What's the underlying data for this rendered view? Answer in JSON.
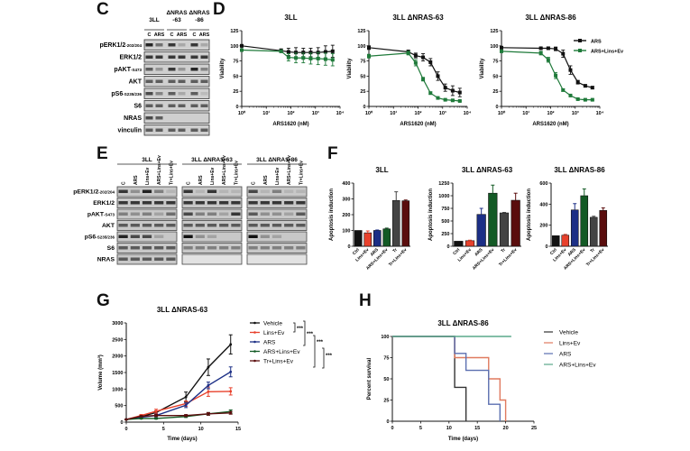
{
  "panels": {
    "C": {
      "letter": "C",
      "groups": [
        "3LL",
        "ΔNRAS\n-63",
        "ΔNRAS\n-86"
      ],
      "group_lines": [
        [
          "3LL"
        ],
        [
          "ΔNRAS",
          "-63"
        ],
        [
          "ΔNRAS",
          "-86"
        ]
      ],
      "lanes": [
        "C",
        "ARS",
        "C",
        "ARS",
        "C",
        "ARS"
      ],
      "rows": [
        "pERK1/2-T202/Y204",
        "ERK1/2",
        "pAKT-S473",
        "AKT",
        "pS6-S235/236",
        "S6",
        "NRAS",
        "vinculin"
      ],
      "row_labels": [
        {
          "main": "pERK1/2",
          "sub": "-202/204"
        },
        {
          "main": "ERK1/2",
          "sub": ""
        },
        {
          "main": "pAKT",
          "sub": "-S473"
        },
        {
          "main": "AKT",
          "sub": ""
        },
        {
          "main": "pS6",
          "sub": "-S235/236"
        },
        {
          "main": "S6",
          "sub": ""
        },
        {
          "main": "NRAS",
          "sub": ""
        },
        {
          "main": "vinculin",
          "sub": ""
        }
      ]
    },
    "D": {
      "letter": "D"
    },
    "E": {
      "letter": "E",
      "groups": [
        "3LL",
        "3LL ΔNRAS-63",
        "3LL ΔNRAS-86"
      ],
      "lanes": [
        "C",
        "ARS",
        "Lins+Ev",
        "ARS+Lins+Ev",
        "Tr+Lins+Ev"
      ],
      "row_labels": [
        {
          "main": "pERK1/2",
          "sub": "-202/204"
        },
        {
          "main": "ERK1/2",
          "sub": ""
        },
        {
          "main": "pAKT",
          "sub": "-S473"
        },
        {
          "main": "AKT",
          "sub": ""
        },
        {
          "main": "pS6",
          "sub": "-S235/236"
        },
        {
          "main": "S6",
          "sub": ""
        },
        {
          "main": "NRAS",
          "sub": ""
        }
      ]
    },
    "F": {
      "letter": "F"
    },
    "G": {
      "letter": "G",
      "significance": "***"
    },
    "H": {
      "letter": "H"
    }
  },
  "colors": {
    "black": "#111111",
    "green": "#1f7a3a",
    "red": "#e8412c",
    "blue": "#1c2f86",
    "darkgreen": "#135a25",
    "grey": "#444444",
    "maroon": "#5a0d0d",
    "km_black": "#333333",
    "km_red": "#e07a5f",
    "km_blue": "#5b6fb0",
    "km_green": "#5aa88a"
  },
  "chart_data": [
    {
      "id": "D1",
      "type": "line",
      "title": "3LL",
      "xlabel": "ARS1620 (nM)",
      "ylabel": "Viability",
      "xscale": "log",
      "xlim": [
        1,
        10000
      ],
      "xticks": [
        "10⁰",
        "10¹",
        "10²",
        "10³",
        "10⁴"
      ],
      "ylim": [
        0,
        125
      ],
      "yticks": [
        0,
        25,
        50,
        75,
        100,
        125
      ],
      "series": [
        {
          "name": "ARS",
          "color": "black",
          "x": [
            1,
            40,
            80,
            160,
            320,
            640,
            1280,
            2560,
            5000
          ],
          "y": [
            100,
            92,
            90,
            89,
            89,
            89,
            89,
            90,
            91
          ],
          "err": [
            2,
            3,
            6,
            8,
            7,
            7,
            8,
            10,
            10
          ]
        },
        {
          "name": "ARS+Lins+Ev",
          "color": "green",
          "x": [
            1,
            40,
            80,
            160,
            320,
            640,
            1280,
            2560,
            5000
          ],
          "y": [
            93,
            91,
            81,
            80,
            80,
            79,
            79,
            78,
            77
          ],
          "err": [
            2,
            2,
            6,
            8,
            8,
            9,
            10,
            10,
            10
          ]
        }
      ]
    },
    {
      "id": "D2",
      "type": "line",
      "title": "3LL  ΔNRAS-63",
      "xlabel": "ARS1620 (nM)",
      "ylabel": "Viability",
      "xscale": "log",
      "xlim": [
        1,
        10000
      ],
      "xticks": [
        "10⁰",
        "10¹",
        "10²",
        "10³",
        "10⁴"
      ],
      "ylim": [
        0,
        125
      ],
      "yticks": [
        0,
        25,
        50,
        75,
        100,
        125
      ],
      "series": [
        {
          "name": "ARS",
          "color": "black",
          "x": [
            1,
            40,
            80,
            160,
            320,
            640,
            1280,
            2560,
            5000
          ],
          "y": [
            97,
            90,
            84,
            81,
            73,
            50,
            31,
            26,
            23
          ],
          "err": [
            3,
            3,
            4,
            6,
            6,
            7,
            6,
            8,
            7
          ]
        },
        {
          "name": "ARS+Lins+Ev",
          "color": "green",
          "x": [
            1,
            40,
            80,
            160,
            320,
            640,
            1280,
            2560,
            5000
          ],
          "y": [
            83,
            88,
            72,
            45,
            22,
            14,
            11,
            10,
            9
          ],
          "err": [
            3,
            3,
            5,
            3,
            2,
            1,
            1,
            1,
            1
          ]
        }
      ]
    },
    {
      "id": "D3",
      "type": "line",
      "title": "3LL  ΔNRAS-86",
      "xlabel": "ARS1620 (nM)",
      "ylabel": "Viability",
      "xscale": "log",
      "xlim": [
        1,
        10000
      ],
      "xticks": [
        "10⁰",
        "10¹",
        "10²",
        "10³",
        "10⁴"
      ],
      "ylim": [
        0,
        125
      ],
      "yticks": [
        0,
        25,
        50,
        75,
        100,
        125
      ],
      "legend": "top-right",
      "series": [
        {
          "name": "ARS",
          "color": "black",
          "x": [
            1,
            40,
            80,
            160,
            320,
            640,
            1280,
            2560,
            5000
          ],
          "y": [
            97,
            96,
            96,
            95,
            87,
            60,
            40,
            34,
            31
          ],
          "err": [
            1,
            1,
            2,
            3,
            6,
            7,
            3,
            2,
            2
          ]
        },
        {
          "name": "ARS+Lins+Ev",
          "color": "green",
          "x": [
            1,
            40,
            80,
            160,
            320,
            640,
            1280,
            2560,
            5000
          ],
          "y": [
            91,
            88,
            77,
            51,
            27,
            18,
            12,
            11,
            11
          ],
          "err": [
            2,
            3,
            4,
            5,
            2,
            1,
            1,
            1,
            1
          ]
        }
      ]
    },
    {
      "id": "F1",
      "type": "bar",
      "title": "3LL",
      "ylabel": "Apoptosis induction",
      "categories": [
        "Ctrl",
        "Lins+Ev",
        "ARS",
        "ARS+Lins+Ev",
        "Tr",
        "Tr+Lins+Ev"
      ],
      "colors": [
        "black",
        "red",
        "blue",
        "darkgreen",
        "grey",
        "maroon"
      ],
      "values": [
        100,
        85,
        100,
        110,
        290,
        288
      ],
      "err": [
        0,
        12,
        3,
        5,
        55,
        5
      ],
      "ylim": [
        0,
        400
      ],
      "yticks": [
        0,
        100,
        200,
        300,
        400
      ]
    },
    {
      "id": "F2",
      "type": "bar",
      "title": "3LL ΔNRAS-63",
      "ylabel": "Apoptosis induction",
      "categories": [
        "Ctrl",
        "Lins+Ev",
        "ARS",
        "ARS+Lins+Ev",
        "Tr",
        "Tr+Lins+Ev"
      ],
      "colors": [
        "black",
        "red",
        "blue",
        "darkgreen",
        "grey",
        "maroon"
      ],
      "values": [
        100,
        110,
        630,
        1050,
        660,
        910
      ],
      "err": [
        0,
        10,
        120,
        160,
        10,
        140
      ],
      "ylim": [
        0,
        1250
      ],
      "yticks": [
        0,
        250,
        500,
        750,
        1000,
        1250
      ]
    },
    {
      "id": "F3",
      "type": "bar",
      "title": "3LL ΔNRAS-86",
      "ylabel": "Apoptosis induction",
      "categories": [
        "Ctrl",
        "Lins+Ev",
        "ARS",
        "ARS+Lins+Ev",
        "Tr",
        "Tr+Lins+Ev"
      ],
      "colors": [
        "black",
        "red",
        "blue",
        "darkgreen",
        "grey",
        "maroon"
      ],
      "values": [
        100,
        105,
        345,
        480,
        275,
        340
      ],
      "err": [
        0,
        8,
        60,
        65,
        10,
        25
      ],
      "ylim": [
        0,
        600
      ],
      "yticks": [
        0,
        200,
        400,
        600
      ]
    },
    {
      "id": "G",
      "type": "line",
      "title": "3LL ΔNRAS-63",
      "xlabel": "Time (days)",
      "ylabel": "Volume (mm³)",
      "xlim": [
        0,
        15
      ],
      "xticks": [
        0,
        5,
        10,
        15
      ],
      "ylim": [
        0,
        3000
      ],
      "yticks": [
        0,
        500,
        1000,
        1500,
        2000,
        2500,
        3000
      ],
      "legend": "right",
      "series": [
        {
          "name": "Vehicle",
          "color": "black",
          "x": [
            0,
            2,
            4,
            8,
            11,
            14
          ],
          "y": [
            80,
            170,
            290,
            760,
            1660,
            2350
          ],
          "err": [
            10,
            30,
            50,
            150,
            250,
            290
          ]
        },
        {
          "name": "Lins+Ev",
          "color": "red",
          "x": [
            0,
            2,
            4,
            8,
            11,
            14
          ],
          "y": [
            80,
            200,
            330,
            560,
            920,
            930
          ],
          "err": [
            10,
            30,
            60,
            80,
            140,
            110
          ]
        },
        {
          "name": "ARS",
          "color": "blue",
          "x": [
            0,
            2,
            4,
            8,
            11,
            14
          ],
          "y": [
            80,
            150,
            200,
            510,
            1110,
            1520
          ],
          "err": [
            10,
            20,
            40,
            70,
            100,
            150
          ]
        },
        {
          "name": "ARS+Lins+Ev",
          "color": "darkgreen",
          "x": [
            0,
            2,
            4,
            8,
            11,
            14
          ],
          "y": [
            80,
            110,
            110,
            170,
            250,
            320
          ],
          "err": [
            10,
            15,
            20,
            30,
            40,
            50
          ]
        },
        {
          "name": "Tr+Lins+Ev",
          "color": "maroon",
          "x": [
            0,
            2,
            4,
            8,
            11,
            14
          ],
          "y": [
            80,
            180,
            200,
            200,
            250,
            280
          ],
          "err": [
            10,
            20,
            30,
            30,
            40,
            40
          ]
        }
      ]
    },
    {
      "id": "H",
      "type": "line",
      "subtype": "kaplan-meier",
      "title": "3LL ΔNRAS-86",
      "xlabel": "Time (days)",
      "ylabel": "Percent survival",
      "xlim": [
        0,
        25
      ],
      "xticks": [
        0,
        5,
        10,
        15,
        20,
        25
      ],
      "ylim": [
        0,
        100
      ],
      "yticks": [
        0,
        25,
        50,
        75,
        100
      ],
      "legend": "right",
      "series": [
        {
          "name": "Vehicle",
          "color": "km_black",
          "steps": [
            [
              0,
              100
            ],
            [
              11,
              40
            ],
            [
              13,
              0
            ]
          ]
        },
        {
          "name": "Lins+Ev",
          "color": "km_red",
          "steps": [
            [
              0,
              100
            ],
            [
              11,
              75
            ],
            [
              17,
              50
            ],
            [
              19,
              25
            ],
            [
              20,
              0
            ]
          ]
        },
        {
          "name": "ARS",
          "color": "km_blue",
          "steps": [
            [
              0,
              100
            ],
            [
              11,
              80
            ],
            [
              13,
              60
            ],
            [
              17,
              20
            ],
            [
              19,
              0
            ]
          ]
        },
        {
          "name": "ARS+Lins+Ev",
          "color": "km_green",
          "steps": [
            [
              0,
              100
            ],
            [
              21,
              100
            ]
          ]
        }
      ]
    }
  ]
}
